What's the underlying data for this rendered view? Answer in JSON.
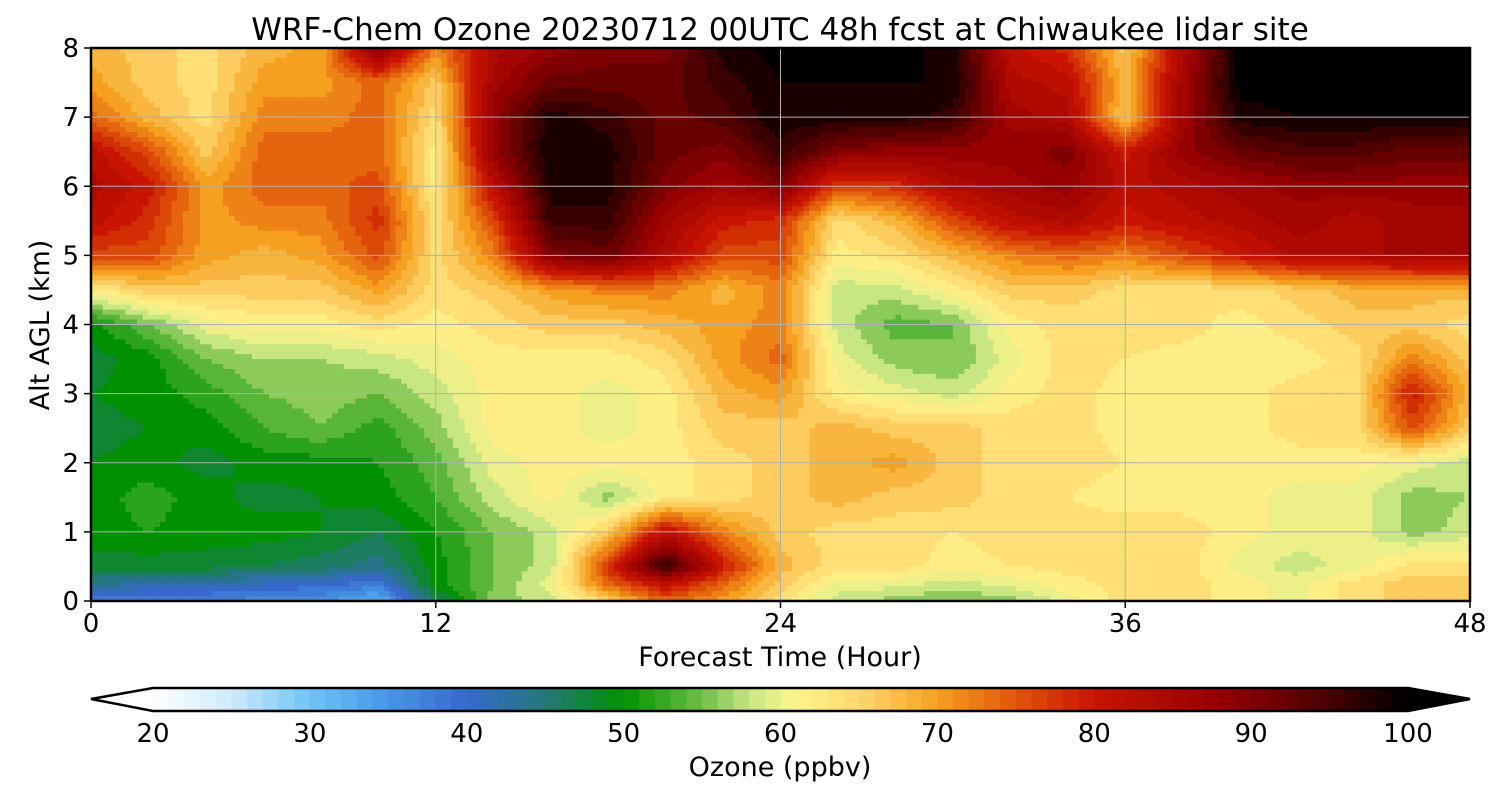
{
  "chart_data": {
    "type": "heatmap",
    "title": "WRF-Chem Ozone  20230712 00UTC 48h fcst at Chiwaukee lidar site",
    "xlabel": "Forecast Time (Hour)",
    "ylabel": "Alt AGL (km)",
    "xlim": [
      0,
      48
    ],
    "ylim": [
      0,
      8
    ],
    "xticks": [
      "0",
      "12",
      "24",
      "36",
      "48"
    ],
    "yticks": [
      "0",
      "1",
      "2",
      "3",
      "4",
      "5",
      "6",
      "7",
      "8"
    ],
    "grid": true,
    "colorbar": {
      "label": "Ozone  (ppbv)",
      "range": [
        20,
        100
      ],
      "extend": "both",
      "ticks": [
        "20",
        "30",
        "40",
        "50",
        "60",
        "70",
        "80",
        "90",
        "100"
      ]
    },
    "x": [
      0,
      2,
      4,
      6,
      8,
      10,
      12,
      14,
      16,
      18,
      20,
      22,
      24,
      26,
      28,
      30,
      32,
      34,
      36,
      38,
      40,
      42,
      44,
      46,
      48
    ],
    "y": [
      0,
      0.25,
      0.5,
      1,
      1.5,
      2,
      2.5,
      3,
      3.5,
      4,
      4.5,
      5,
      5.5,
      6,
      6.5,
      7,
      7.5,
      8
    ],
    "z": [
      [
        38,
        37,
        37,
        36,
        35,
        32,
        46,
        56,
        58,
        66,
        74,
        70,
        64,
        58,
        56,
        55,
        56,
        60,
        64,
        64,
        62,
        60,
        64,
        66,
        66
      ],
      [
        44,
        42,
        42,
        41,
        40,
        38,
        50,
        55,
        60,
        74,
        82,
        74,
        66,
        60,
        60,
        58,
        60,
        62,
        64,
        64,
        62,
        60,
        64,
        66,
        66
      ],
      [
        48,
        48,
        48,
        47,
        46,
        44,
        50,
        55,
        58,
        78,
        97,
        80,
        68,
        64,
        64,
        62,
        63,
        64,
        64,
        64,
        60,
        58,
        60,
        64,
        64
      ],
      [
        50,
        51,
        50,
        50,
        49,
        47,
        51,
        55,
        58,
        66,
        82,
        72,
        66,
        64,
        64,
        63,
        64,
        64,
        64,
        64,
        62,
        60,
        60,
        56,
        58
      ],
      [
        50,
        52,
        50,
        48,
        49,
        50,
        53,
        58,
        62,
        56,
        62,
        64,
        66,
        68,
        66,
        66,
        64,
        63,
        62,
        62,
        62,
        60,
        60,
        56,
        57
      ],
      [
        49,
        50,
        48,
        50,
        50,
        51,
        54,
        60,
        62,
        62,
        62,
        64,
        66,
        68,
        70,
        66,
        64,
        64,
        63,
        62,
        62,
        62,
        62,
        60,
        58
      ],
      [
        48,
        49,
        50,
        53,
        55,
        52,
        56,
        62,
        62,
        60,
        62,
        66,
        66,
        68,
        66,
        66,
        64,
        64,
        62,
        62,
        62,
        64,
        64,
        76,
        66
      ],
      [
        49,
        50,
        52,
        55,
        56,
        55,
        58,
        62,
        62,
        60,
        62,
        68,
        70,
        62,
        60,
        58,
        62,
        64,
        62,
        62,
        62,
        64,
        64,
        80,
        68
      ],
      [
        48,
        50,
        55,
        57,
        57,
        58,
        60,
        62,
        62,
        62,
        64,
        70,
        74,
        60,
        56,
        55,
        60,
        64,
        63,
        62,
        62,
        62,
        64,
        72,
        66
      ],
      [
        50,
        55,
        60,
        62,
        62,
        64,
        62,
        64,
        66,
        66,
        68,
        70,
        72,
        58,
        54,
        55,
        62,
        64,
        64,
        64,
        62,
        64,
        66,
        66,
        64
      ],
      [
        62,
        66,
        66,
        66,
        66,
        70,
        64,
        66,
        70,
        72,
        72,
        68,
        72,
        58,
        58,
        62,
        66,
        66,
        64,
        64,
        64,
        66,
        68,
        68,
        68
      ],
      [
        76,
        76,
        70,
        68,
        70,
        76,
        64,
        72,
        90,
        92,
        84,
        76,
        76,
        62,
        64,
        68,
        72,
        74,
        72,
        76,
        80,
        84,
        84,
        86,
        86
      ],
      [
        82,
        78,
        70,
        72,
        72,
        78,
        64,
        76,
        96,
        96,
        86,
        80,
        78,
        64,
        68,
        76,
        82,
        84,
        80,
        82,
        84,
        86,
        84,
        86,
        86
      ],
      [
        84,
        80,
        70,
        74,
        74,
        76,
        62,
        82,
        98,
        98,
        90,
        86,
        90,
        76,
        78,
        84,
        86,
        88,
        82,
        84,
        86,
        88,
        88,
        88,
        88
      ],
      [
        82,
        76,
        66,
        74,
        74,
        74,
        62,
        88,
        99,
        98,
        92,
        90,
        96,
        90,
        88,
        88,
        88,
        90,
        80,
        88,
        92,
        94,
        94,
        92,
        92
      ],
      [
        74,
        68,
        64,
        72,
        72,
        74,
        64,
        88,
        98,
        96,
        92,
        94,
        99,
        98,
        98,
        96,
        86,
        84,
        66,
        86,
        98,
        99,
        99,
        99,
        99
      ],
      [
        70,
        66,
        64,
        70,
        70,
        74,
        66,
        86,
        92,
        92,
        92,
        96,
        99,
        99,
        99,
        99,
        84,
        82,
        68,
        86,
        100,
        100,
        100,
        100,
        100
      ],
      [
        68,
        66,
        64,
        68,
        70,
        90,
        72,
        84,
        88,
        90,
        90,
        98,
        100,
        100,
        100,
        98,
        82,
        78,
        66,
        84,
        100,
        100,
        100,
        100,
        100
      ]
    ]
  }
}
